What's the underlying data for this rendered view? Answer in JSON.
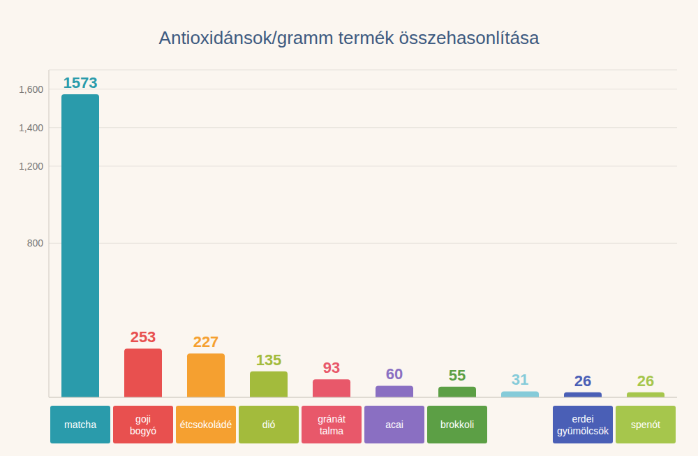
{
  "chart_data": {
    "type": "bar",
    "title": "Antioxidánsok/gramm termék összehasonlítása",
    "categories": [
      "matcha",
      "goji bogyó",
      "étcsokoládé",
      "dió",
      "gránát talma",
      "acai",
      "brokkoli",
      null,
      "erdei gyümölcsök",
      "spenót"
    ],
    "values": [
      1573,
      253,
      227,
      135,
      93,
      60,
      55,
      31,
      26,
      26
    ],
    "colors": [
      "#2a9bab",
      "#e8504f",
      "#f5a030",
      "#a3bb3c",
      "#e8586a",
      "#8a6fc2",
      "#5c9f45",
      "#85cbd9",
      "#4a5fb6",
      "#a6c64c"
    ],
    "ylim": [
      0,
      1700
    ],
    "yticks": [
      800,
      {
        "value": 1200,
        "label": "1,200"
      },
      {
        "value": 1400,
        "label": "1,400"
      },
      {
        "value": 1600,
        "label": "1,600"
      }
    ],
    "grid": true,
    "data_labels": true
  }
}
